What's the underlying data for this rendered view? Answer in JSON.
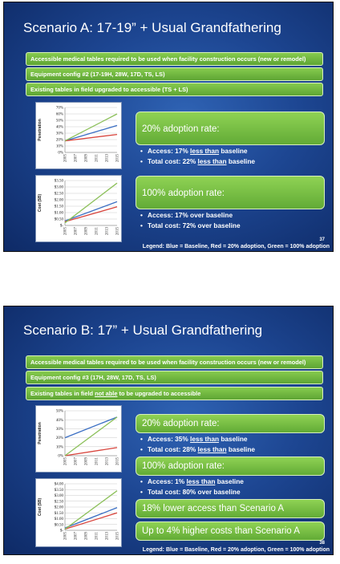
{
  "legend_text": "Legend: Blue = Baseline, Red = 20% adoption, Green = 100% adoption",
  "slides": [
    {
      "title": "Scenario A: 17-19”  + Usual Grandfathering",
      "page_number": "37",
      "bars": [
        "Accessible medical tables required to be used when facility construction occurs (new or remodel)",
        "Equipment config #2 (17-19H, 28W, 17D, TS, LS)",
        "Existing tables in field upgraded to accessible (TS + LS)"
      ],
      "pill1": "20% adoption rate:",
      "p1b1": {
        "pre": "Access: 17% ",
        "u": "less than",
        "post": " baseline"
      },
      "p1b2": {
        "pre": "Total cost: 22% ",
        "u": "less than",
        "post": " baseline"
      },
      "pill2": "100% adoption rate:",
      "p2b1": "Access: 17% over baseline",
      "p2b2": "Total cost: 72% over baseline"
    },
    {
      "title": "Scenario B: 17”  + Usual Grandfathering",
      "page_number": "38",
      "bars": [
        "Accessible medical tables required to be used when facility construction occurs (new or remodel)",
        "Equipment config #3 (17H, 28W, 17D, TS, LS)",
        {
          "pre": "Existing tables in field ",
          "u": "not able",
          "post": " to be upgraded to accessible"
        }
      ],
      "pill1": "20% adoption rate:",
      "p1b1": {
        "pre": "Access: 35% ",
        "u": "less than",
        "post": " baseline"
      },
      "p1b2": {
        "pre": "Total cost: 28% ",
        "u": "less than",
        "post": " baseline"
      },
      "pill2": "100% adoption rate:",
      "p2b1": {
        "pre": "Access: 1% ",
        "u": "less than",
        "post": " baseline"
      },
      "p2b2": "Total cost: 80% over baseline",
      "pill3": "18% lower access than Scenario A",
      "pill4": "Up to 4% higher costs than Scenario A"
    }
  ],
  "colors": {
    "baseline": "#3b6fc4",
    "adoption_20": "#d8443c",
    "adoption_100": "#8cc05a"
  },
  "chart_data": [
    {
      "type": "line",
      "ylabel": "Penetration",
      "yticks": [
        "0%",
        "10%",
        "20%",
        "30%",
        "40%",
        "50%",
        "60%",
        "70%"
      ],
      "xticks": [
        "2005",
        "2007",
        "2009",
        "2011",
        "2013",
        "2015"
      ],
      "ylim": [
        0,
        70
      ],
      "x": [
        2005,
        2015
      ],
      "series": [
        {
          "values": [
            18,
            42
          ],
          "color": "#3b6fc4"
        },
        {
          "values": [
            18,
            28
          ],
          "color": "#d8443c"
        },
        {
          "values": [
            18,
            60
          ],
          "color": "#8cc05a"
        }
      ]
    },
    {
      "type": "line",
      "ylabel": "Cost ($B)",
      "yticks": [
        "$-",
        "$0.50",
        "$1.00",
        "$1.50",
        "$2.00",
        "$2.50",
        "$3.00",
        "$3.50"
      ],
      "xticks": [
        "2005",
        "2007",
        "2009",
        "2011",
        "2013",
        "2015"
      ],
      "ylim": [
        0,
        3.5
      ],
      "x": [
        2005,
        2015
      ],
      "series": [
        {
          "values": [
            0.35,
            1.85
          ],
          "color": "#3b6fc4"
        },
        {
          "values": [
            0.3,
            1.45
          ],
          "color": "#d8443c"
        },
        {
          "values": [
            0.2,
            3.3
          ],
          "color": "#8cc05a"
        }
      ]
    },
    {
      "type": "line",
      "ylabel": "Penetration",
      "yticks": [
        "0%",
        "10%",
        "20%",
        "30%",
        "40%",
        "50%"
      ],
      "xticks": [
        "2005",
        "2007",
        "2009",
        "2011",
        "2013",
        "2015"
      ],
      "ylim": [
        0,
        50
      ],
      "x": [
        2005,
        2015
      ],
      "series": [
        {
          "values": [
            20,
            43
          ],
          "color": "#3b6fc4"
        },
        {
          "values": [
            0,
            9
          ],
          "color": "#d8443c"
        },
        {
          "values": [
            0,
            43
          ],
          "color": "#8cc05a"
        }
      ]
    },
    {
      "type": "line",
      "ylabel": "Cost ($B)",
      "yticks": [
        "$-",
        "$0.50",
        "$1.00",
        "$1.50",
        "$2.00",
        "$2.50",
        "$3.00",
        "$3.50",
        "$4.00"
      ],
      "xticks": [
        "2005",
        "2007",
        "2009",
        "2011",
        "2013",
        "2015"
      ],
      "ylim": [
        0,
        4
      ],
      "x": [
        2005,
        2015
      ],
      "series": [
        {
          "values": [
            0.2,
            1.95
          ],
          "color": "#3b6fc4"
        },
        {
          "values": [
            0.1,
            1.5
          ],
          "color": "#d8443c"
        },
        {
          "values": [
            0.1,
            3.4
          ],
          "color": "#8cc05a"
        }
      ]
    }
  ]
}
